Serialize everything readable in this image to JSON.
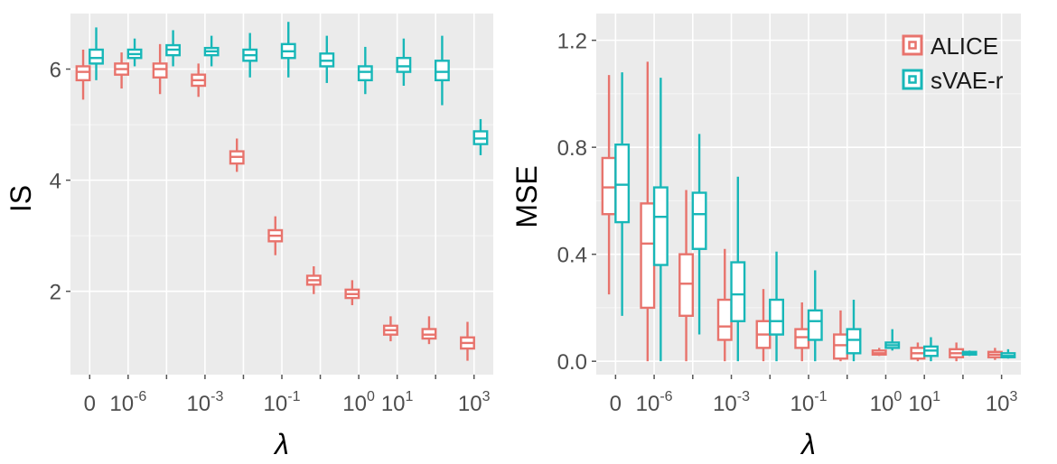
{
  "chart_data": [
    {
      "type": "box",
      "ylabel": "IS",
      "xlabel": "λ",
      "ylim": [
        0.5,
        7.0
      ],
      "yticks": [
        "2",
        "4",
        "6"
      ],
      "yticks_values": [
        2,
        4,
        6
      ],
      "x_tick_labels": [
        {
          "base": "0",
          "exp": ""
        },
        {
          "base": "10",
          "exp": "-6"
        },
        {
          "base": "10",
          "exp": "-3"
        },
        {
          "base": "10",
          "exp": "-1"
        },
        {
          "base": "10",
          "exp": "0"
        },
        {
          "base": "10",
          "exp": "1"
        },
        {
          "base": "10",
          "exp": "3"
        }
      ],
      "x_tick_groups": [
        0,
        1,
        3,
        5,
        7,
        8,
        10
      ],
      "num_groups": 11,
      "series": [
        {
          "name": "ALICE",
          "color": "#e8736c",
          "boxes": [
            {
              "min": 5.45,
              "q1": 5.8,
              "median": 5.95,
              "q3": 6.05,
              "max": 6.35
            },
            {
              "min": 5.65,
              "q1": 5.9,
              "median": 6.0,
              "q3": 6.1,
              "max": 6.3
            },
            {
              "min": 5.55,
              "q1": 5.85,
              "median": 6.0,
              "q3": 6.1,
              "max": 6.45
            },
            {
              "min": 5.5,
              "q1": 5.7,
              "median": 5.8,
              "q3": 5.9,
              "max": 6.1
            },
            {
              "min": 4.15,
              "q1": 4.3,
              "median": 4.42,
              "q3": 4.52,
              "max": 4.75
            },
            {
              "min": 2.65,
              "q1": 2.9,
              "median": 3.0,
              "q3": 3.1,
              "max": 3.35
            },
            {
              "min": 1.95,
              "q1": 2.12,
              "median": 2.2,
              "q3": 2.28,
              "max": 2.45
            },
            {
              "min": 1.75,
              "q1": 1.88,
              "median": 1.95,
              "q3": 2.03,
              "max": 2.2
            },
            {
              "min": 1.1,
              "q1": 1.22,
              "median": 1.3,
              "q3": 1.38,
              "max": 1.55
            },
            {
              "min": 1.05,
              "q1": 1.15,
              "median": 1.22,
              "q3": 1.32,
              "max": 1.55
            },
            {
              "min": 0.75,
              "q1": 0.97,
              "median": 1.07,
              "q3": 1.17,
              "max": 1.45
            }
          ]
        },
        {
          "name": "sVAE-r",
          "color": "#17b7b8",
          "boxes": [
            {
              "min": 5.8,
              "q1": 6.1,
              "median": 6.2,
              "q3": 6.35,
              "max": 6.75
            },
            {
              "min": 6.05,
              "q1": 6.2,
              "median": 6.27,
              "q3": 6.35,
              "max": 6.55
            },
            {
              "min": 6.05,
              "q1": 6.25,
              "median": 6.35,
              "q3": 6.43,
              "max": 6.7
            },
            {
              "min": 6.05,
              "q1": 6.25,
              "median": 6.32,
              "q3": 6.38,
              "max": 6.6
            },
            {
              "min": 5.85,
              "q1": 6.15,
              "median": 6.25,
              "q3": 6.35,
              "max": 6.65
            },
            {
              "min": 5.85,
              "q1": 6.2,
              "median": 6.32,
              "q3": 6.45,
              "max": 6.85
            },
            {
              "min": 5.75,
              "q1": 6.05,
              "median": 6.15,
              "q3": 6.28,
              "max": 6.6
            },
            {
              "min": 5.55,
              "q1": 5.8,
              "median": 5.95,
              "q3": 6.05,
              "max": 6.4
            },
            {
              "min": 5.7,
              "q1": 5.95,
              "median": 6.05,
              "q3": 6.2,
              "max": 6.55
            },
            {
              "min": 5.35,
              "q1": 5.8,
              "median": 5.95,
              "q3": 6.15,
              "max": 6.6
            },
            {
              "min": 4.45,
              "q1": 4.65,
              "median": 4.75,
              "q3": 4.88,
              "max": 5.1
            }
          ]
        }
      ]
    },
    {
      "type": "box",
      "ylabel": "MSE",
      "xlabel": "λ",
      "ylim": [
        -0.05,
        1.3
      ],
      "yticks": [
        "0.0",
        "0.4",
        "0.8",
        "1.2"
      ],
      "yticks_values": [
        0.0,
        0.4,
        0.8,
        1.2
      ],
      "x_tick_labels": [
        {
          "base": "0",
          "exp": ""
        },
        {
          "base": "10",
          "exp": "-6"
        },
        {
          "base": "10",
          "exp": "-3"
        },
        {
          "base": "10",
          "exp": "-1"
        },
        {
          "base": "10",
          "exp": "0"
        },
        {
          "base": "10",
          "exp": "1"
        },
        {
          "base": "10",
          "exp": "3"
        }
      ],
      "x_tick_groups": [
        0,
        1,
        3,
        5,
        7,
        8,
        10
      ],
      "num_groups": 11,
      "legend": {
        "position": "top-right",
        "items": [
          "ALICE",
          "sVAE-r"
        ]
      },
      "series": [
        {
          "name": "ALICE",
          "color": "#e8736c",
          "boxes": [
            {
              "min": 0.25,
              "q1": 0.55,
              "median": 0.65,
              "q3": 0.76,
              "max": 1.07
            },
            {
              "min": 0.0,
              "q1": 0.2,
              "median": 0.44,
              "q3": 0.59,
              "max": 1.12
            },
            {
              "min": 0.0,
              "q1": 0.17,
              "median": 0.29,
              "q3": 0.4,
              "max": 0.64
            },
            {
              "min": 0.0,
              "q1": 0.08,
              "median": 0.13,
              "q3": 0.23,
              "max": 0.42
            },
            {
              "min": 0.0,
              "q1": 0.05,
              "median": 0.1,
              "q3": 0.15,
              "max": 0.27
            },
            {
              "min": 0.0,
              "q1": 0.05,
              "median": 0.09,
              "q3": 0.12,
              "max": 0.22
            },
            {
              "min": 0.0,
              "q1": 0.01,
              "median": 0.06,
              "q3": 0.1,
              "max": 0.19
            },
            {
              "min": 0.02,
              "q1": 0.025,
              "median": 0.03,
              "q3": 0.04,
              "max": 0.05
            },
            {
              "min": 0.0,
              "q1": 0.01,
              "median": 0.03,
              "q3": 0.05,
              "max": 0.07
            },
            {
              "min": 0.0,
              "q1": 0.015,
              "median": 0.03,
              "q3": 0.045,
              "max": 0.07
            },
            {
              "min": 0.005,
              "q1": 0.015,
              "median": 0.025,
              "q3": 0.035,
              "max": 0.05
            }
          ]
        },
        {
          "name": "sVAE-r",
          "color": "#17b7b8",
          "boxes": [
            {
              "min": 0.17,
              "q1": 0.52,
              "median": 0.66,
              "q3": 0.81,
              "max": 1.08
            },
            {
              "min": 0.0,
              "q1": 0.36,
              "median": 0.54,
              "q3": 0.65,
              "max": 1.06
            },
            {
              "min": 0.1,
              "q1": 0.42,
              "median": 0.55,
              "q3": 0.63,
              "max": 0.85
            },
            {
              "min": 0.0,
              "q1": 0.15,
              "median": 0.25,
              "q3": 0.37,
              "max": 0.69
            },
            {
              "min": 0.0,
              "q1": 0.1,
              "median": 0.15,
              "q3": 0.23,
              "max": 0.41
            },
            {
              "min": 0.0,
              "q1": 0.08,
              "median": 0.15,
              "q3": 0.19,
              "max": 0.34
            },
            {
              "min": 0.0,
              "q1": 0.03,
              "median": 0.08,
              "q3": 0.12,
              "max": 0.23
            },
            {
              "min": 0.04,
              "q1": 0.05,
              "median": 0.06,
              "q3": 0.07,
              "max": 0.12
            },
            {
              "min": 0.0,
              "q1": 0.02,
              "median": 0.04,
              "q3": 0.055,
              "max": 0.09
            },
            {
              "min": 0.02,
              "q1": 0.025,
              "median": 0.03,
              "q3": 0.035,
              "max": 0.04
            },
            {
              "min": 0.01,
              "q1": 0.015,
              "median": 0.02,
              "q3": 0.03,
              "max": 0.045
            }
          ]
        }
      ]
    }
  ]
}
